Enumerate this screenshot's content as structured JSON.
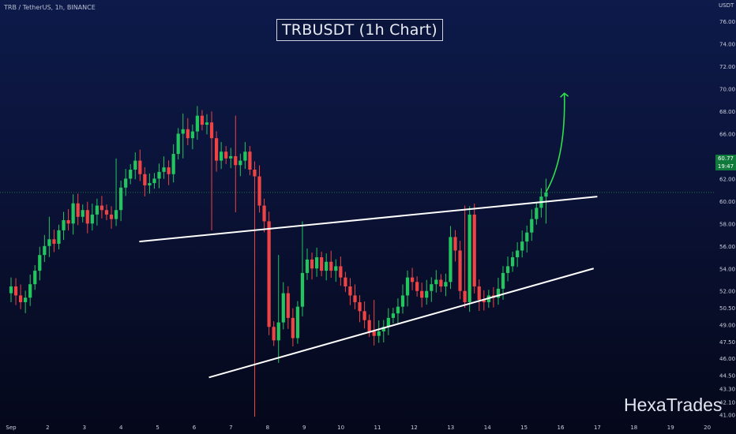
{
  "header": {
    "symbol_info": "TRB / TetherUS, 1h, BINANCE",
    "currency": "USDT",
    "title": "TRBUSDT (1h Chart)",
    "watermark": "HexaTrades"
  },
  "colors": {
    "up": "#22c55e",
    "down": "#ef4444",
    "trendline": "#ffffff",
    "arrow": "#2ee04a",
    "current_price_line": "#1f8f4a"
  },
  "chart_data": {
    "type": "candlestick",
    "title": "TRBUSDT (1h Chart)",
    "symbol": "TRB / TetherUS, 1h, BINANCE",
    "x_tick_labels": [
      "Sep",
      "2",
      "3",
      "4",
      "5",
      "6",
      "7",
      "8",
      "9",
      "10",
      "11",
      "12",
      "13",
      "14",
      "15",
      "16",
      "17",
      "18",
      "19",
      "20"
    ],
    "y_tick_labels": [
      "76.00",
      "74.00",
      "72.00",
      "70.00",
      "68.00",
      "66.00",
      "64.00",
      "62.00",
      "60.00",
      "58.00",
      "56.00",
      "54.00",
      "52.00",
      "50.50",
      "49.00",
      "47.50",
      "46.00",
      "44.50",
      "43.30",
      "42.10",
      "41.00"
    ],
    "ylim": [
      40.6,
      77.2
    ],
    "xlim_days": [
      1,
      20.2
    ],
    "current_price": {
      "value": 60.77,
      "label": "60.77",
      "countdown": "19:47"
    },
    "closes": [
      52.4,
      51.6,
      51.0,
      51.4,
      52.6,
      53.8,
      55.2,
      56.0,
      56.6,
      56.2,
      57.4,
      58.3,
      58.0,
      59.8,
      58.6,
      59.2,
      58.0,
      58.8,
      59.6,
      59.2,
      58.8,
      58.4,
      59.2,
      61.2,
      62.0,
      62.8,
      63.6,
      62.4,
      61.4,
      61.6,
      62.0,
      62.6,
      63.0,
      62.4,
      64.2,
      66.0,
      66.4,
      65.6,
      66.2,
      67.6,
      66.8,
      67.0,
      65.6,
      63.6,
      64.4,
      63.8,
      64.0,
      63.2,
      63.6,
      64.4,
      62.8,
      62.2,
      59.6,
      58.2,
      48.8,
      47.6,
      49.2,
      51.8,
      49.6,
      47.8,
      50.6,
      53.6,
      54.8,
      54.0,
      55.0,
      53.8,
      54.6,
      53.8,
      54.2,
      53.2,
      52.4,
      51.6,
      51.0,
      50.2,
      49.4,
      48.4,
      48.0,
      48.4,
      48.8,
      49.6,
      50.0,
      50.6,
      51.6,
      53.2,
      52.8,
      52.0,
      51.4,
      52.0,
      52.6,
      53.0,
      52.4,
      52.8,
      56.8,
      55.6,
      52.0,
      51.0,
      58.8,
      52.4,
      51.2,
      51.0,
      51.6,
      51.4,
      52.2,
      53.6,
      54.2,
      55.0,
      55.6,
      56.4,
      57.2,
      58.4,
      59.4,
      60.4,
      60.77
    ],
    "range": [
      {
        "day": 1.0,
        "low": 51.0,
        "high": 53.2
      },
      {
        "day": 2.0,
        "low": 55.6,
        "high": 58.6
      },
      {
        "day": 2.7,
        "low": 57.2,
        "high": 60.6
      },
      {
        "day": 3.9,
        "low": 59.0,
        "high": 63.8
      },
      {
        "day": 5.7,
        "low": 63.8,
        "high": 67.8
      },
      {
        "day": 6.5,
        "low": 57.4,
        "high": 62.4
      },
      {
        "day": 7.1,
        "low": 59.0,
        "high": 67.6
      },
      {
        "day": 7.6,
        "low": 40.8,
        "high": 58.6
      },
      {
        "day": 8.3,
        "low": 45.6,
        "high": 55.2
      },
      {
        "day": 9.0,
        "low": 50.6,
        "high": 58.2
      },
      {
        "day": 10.9,
        "low": 47.4,
        "high": 51.2
      },
      {
        "day": 13.4,
        "low": 50.6,
        "high": 59.6
      },
      {
        "day": 15.6,
        "low": 58.0,
        "high": 62.0
      }
    ],
    "annotations": [
      {
        "type": "trendline",
        "name": "upper-trendline",
        "from": {
          "day": 4.5,
          "price": 56.4
        },
        "to": {
          "day": 17.0,
          "price": 60.4
        }
      },
      {
        "type": "trendline",
        "name": "lower-trendline",
        "from": {
          "day": 6.4,
          "price": 44.3
        },
        "to": {
          "day": 16.9,
          "price": 54.0
        }
      },
      {
        "type": "arrow",
        "name": "breakout-arrow",
        "from": {
          "day": 15.6,
          "price": 60.8
        },
        "to": {
          "day": 16.1,
          "price": 69.6
        }
      }
    ]
  }
}
